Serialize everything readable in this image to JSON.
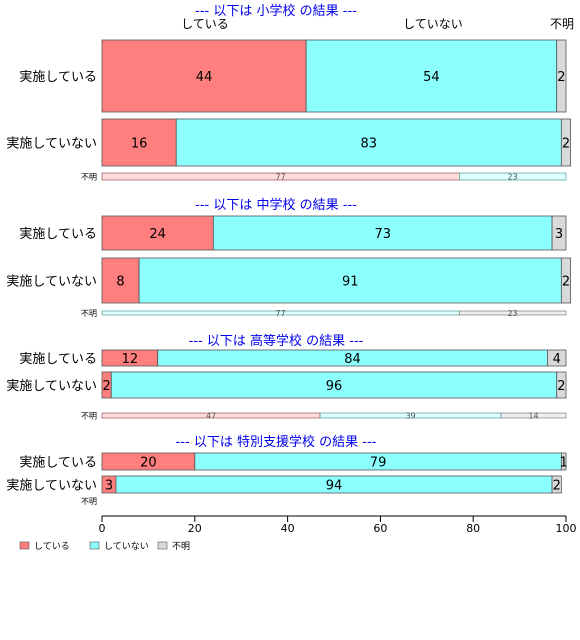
{
  "chart_data": {
    "type": "bar",
    "orientation": "horizontal",
    "stacked": "percent",
    "xlim": [
      0,
      100
    ],
    "xticks": [
      "0",
      "20",
      "40",
      "60",
      "80",
      "100"
    ],
    "legend_position": "bottom-left",
    "legend": [
      {
        "name": "している",
        "color": "#FF7F7F"
      },
      {
        "name": "していない",
        "color": "#8CFFFF"
      },
      {
        "name": "不明",
        "color": "#D9D9D9"
      }
    ],
    "top_column_labels": [
      "している",
      "していない",
      "不明"
    ],
    "groups": [
      {
        "title": "--- 以下は 小学校 の結果 ---",
        "rows": [
          {
            "label": "実施している",
            "values": [
              44,
              54,
              2
            ]
          },
          {
            "label": "実施していない",
            "values": [
              16,
              83,
              2
            ]
          },
          {
            "label": "不明",
            "values": [
              77,
              23,
              0
            ],
            "thin": true
          }
        ]
      },
      {
        "title": "--- 以下は 中学校 の結果 ---",
        "rows": [
          {
            "label": "実施している",
            "values": [
              24,
              73,
              3
            ]
          },
          {
            "label": "実施していない",
            "values": [
              8,
              91,
              2
            ]
          },
          {
            "label": "不明",
            "values": [
              0,
              77,
              23
            ],
            "thin": true
          }
        ]
      },
      {
        "title": "--- 以下は 高等学校 の結果 ---",
        "rows": [
          {
            "label": "実施している",
            "values": [
              12,
              84,
              4
            ]
          },
          {
            "label": "実施していない",
            "values": [
              2,
              96,
              2
            ]
          },
          {
            "label": "不明",
            "values": [
              47,
              39,
              14
            ],
            "thin": true
          }
        ]
      },
      {
        "title": "--- 以下は 特別支援学校 の結果 ---",
        "rows": [
          {
            "label": "実施している",
            "values": [
              20,
              79,
              1
            ]
          },
          {
            "label": "実施していない",
            "values": [
              3,
              94,
              2
            ]
          },
          {
            "label": "不明",
            "values": [],
            "thin": true
          }
        ]
      }
    ]
  }
}
